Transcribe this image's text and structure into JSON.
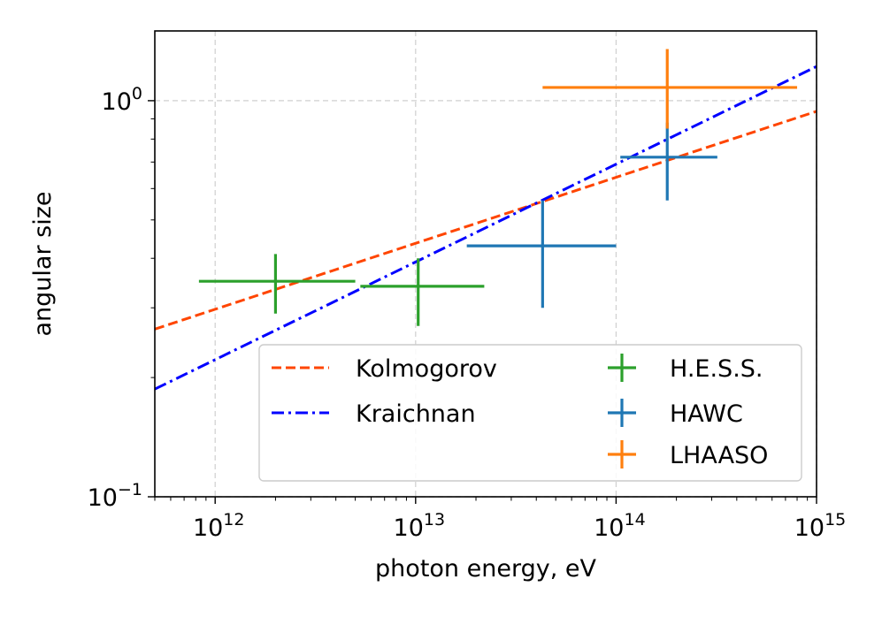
{
  "chart_data": {
    "type": "scatter",
    "x_scale": "log",
    "y_scale": "log",
    "xlabel": "photon energy, eV",
    "ylabel": "angular size",
    "xlim": [
      500000000000.0,
      1000000000000000.0
    ],
    "ylim": [
      0.1,
      1.5
    ],
    "grid": true,
    "legend_position": "lower right",
    "x_ticks": [
      {
        "value": 1000000000000.0,
        "base": "10",
        "exp": "12"
      },
      {
        "value": 10000000000000.0,
        "base": "10",
        "exp": "13"
      },
      {
        "value": 100000000000000.0,
        "base": "10",
        "exp": "14"
      },
      {
        "value": 1000000000000000.0,
        "base": "10",
        "exp": "15"
      }
    ],
    "y_ticks": [
      {
        "value": 0.1,
        "base": "10",
        "exp": "−1"
      },
      {
        "value": 1,
        "base": "10",
        "exp": "0"
      }
    ],
    "lines": [
      {
        "name": "Kolmogorov",
        "color": "#ff4500",
        "style": "dashed",
        "x": [
          500000000000.0,
          1000000000000000.0
        ],
        "y": [
          0.265,
          0.94
        ]
      },
      {
        "name": "Kraichnan",
        "color": "#0000ff",
        "style": "dashdot",
        "x": [
          500000000000.0,
          1000000000000000.0
        ],
        "y": [
          0.187,
          1.22
        ]
      }
    ],
    "series": [
      {
        "name": "H.E.S.S.",
        "color": "#2ca02c",
        "points": [
          {
            "x": 2000000000000.0,
            "y": 0.35,
            "xerr": [
              830000000000.0,
              5000000000000.0
            ],
            "yerr": [
              0.29,
              0.41
            ]
          },
          {
            "x": 10300000000000.0,
            "y": 0.34,
            "xerr": [
              5300000000000.0,
              22000000000000.0
            ],
            "yerr": [
              0.27,
              0.4
            ]
          }
        ]
      },
      {
        "name": "HAWC",
        "color": "#1f77b4",
        "points": [
          {
            "x": 43000000000000.0,
            "y": 0.43,
            "xerr": [
              18000000000000.0,
              100000000000000.0
            ],
            "yerr": [
              0.3,
              0.56
            ]
          },
          {
            "x": 180000000000000.0,
            "y": 0.72,
            "xerr": [
              105000000000000.0,
              320000000000000.0
            ],
            "yerr": [
              0.56,
              0.88
            ]
          }
        ]
      },
      {
        "name": "LHAASO",
        "color": "#ff7f0e",
        "points": [
          {
            "x": 180000000000000.0,
            "y": 1.08,
            "xerr": [
              43000000000000.0,
              800000000000000.0
            ],
            "yerr": [
              0.85,
              1.35
            ]
          }
        ]
      }
    ],
    "legend": [
      "Kolmogorov",
      "Kraichnan",
      "H.E.S.S.",
      "HAWC",
      "LHAASO"
    ]
  }
}
